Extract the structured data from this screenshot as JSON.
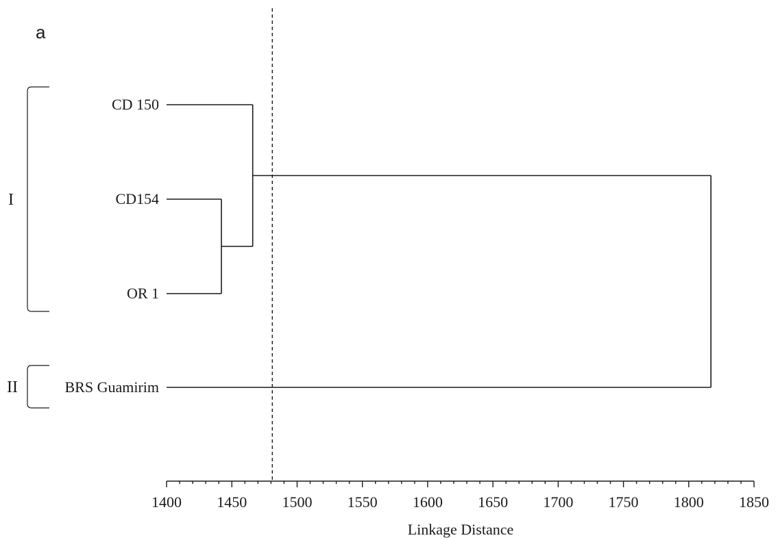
{
  "panel_label": "a",
  "chart_data": {
    "type": "dendrogram",
    "title": "",
    "xlabel": "Linkage Distance",
    "xlim": [
      1400,
      1850
    ],
    "x_ticks": [
      1400,
      1450,
      1500,
      1550,
      1600,
      1650,
      1700,
      1750,
      1800,
      1850
    ],
    "minor_tick_step": 10,
    "cut_distance": 1481,
    "leaves": [
      "CD 150",
      "CD154",
      "OR 1",
      "BRS Guamirim"
    ],
    "merges": [
      {
        "id": "m1",
        "left": "CD154",
        "right": "OR 1",
        "distance": 1442
      },
      {
        "id": "m2",
        "left": "CD 150",
        "right": "m1",
        "distance": 1466
      },
      {
        "id": "m3",
        "left": "m2",
        "right": "BRS Guamirim",
        "distance": 1817
      }
    ],
    "groups": [
      {
        "label": "I",
        "members": [
          "CD 150",
          "CD154",
          "OR 1"
        ]
      },
      {
        "label": "II",
        "members": [
          "BRS Guamirim"
        ]
      }
    ]
  }
}
